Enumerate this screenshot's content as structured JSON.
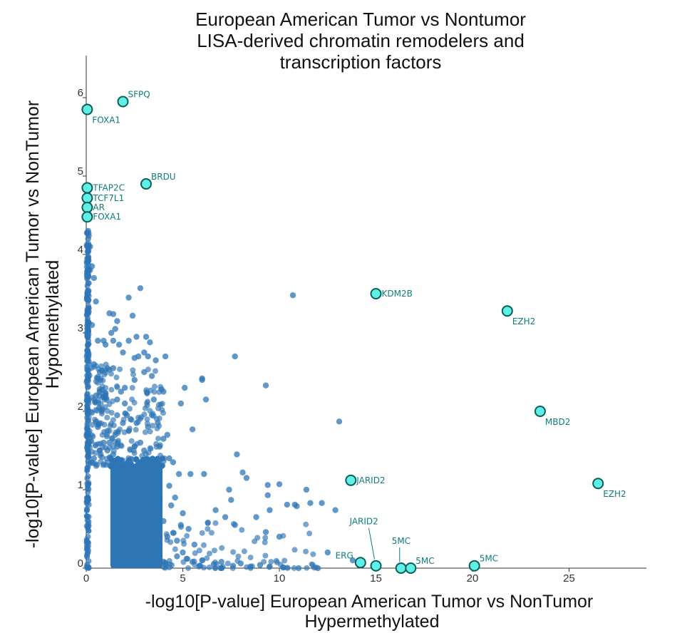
{
  "chart_data": {
    "type": "scatter",
    "title_lines": [
      "European American Tumor vs Nontumor",
      "LISA-derived chromatin remodelers and",
      "transcription factors"
    ],
    "xlabel_lines": [
      "-log10[P-value] European American Tumor vs NonTumor",
      "Hypermethylated"
    ],
    "ylabel_lines": [
      "-log10[P-value] European  American Tumor vs NonTumor",
      "Hypomethylated"
    ],
    "xlim": [
      0,
      29
    ],
    "ylim": [
      0,
      6.6
    ],
    "xticks": [
      0,
      5,
      10,
      15,
      20,
      25
    ],
    "yticks": [
      0,
      1,
      2,
      3,
      4,
      5,
      6
    ],
    "grid": false,
    "colors": {
      "points": "#2e75b6",
      "highlight_fill": "#5ef0e6",
      "highlight_edge": "#0b5e58",
      "annotation": "#0e7c7b",
      "axis": "#333333"
    },
    "points": [
      [
        6.0,
        2.42
      ],
      [
        6.0,
        2.4
      ],
      [
        6.2,
        2.15
      ],
      [
        7.7,
        2.7
      ],
      [
        9.3,
        2.33
      ],
      [
        10.7,
        3.48
      ],
      [
        13.1,
        1.87
      ],
      [
        5.5,
        1.77
      ],
      [
        4.9,
        2.1
      ],
      [
        5.1,
        2.3
      ],
      [
        7.8,
        1.45
      ],
      [
        8.1,
        1.22
      ],
      [
        8.3,
        1.15
      ],
      [
        6.1,
        1.2
      ],
      [
        5.4,
        1.2
      ],
      [
        7.4,
        1.0
      ],
      [
        7.5,
        0.87
      ],
      [
        9.4,
        1.06
      ],
      [
        10.0,
        1.07
      ],
      [
        11.4,
        1.0
      ],
      [
        11.6,
        0.83
      ],
      [
        12.2,
        0.83
      ],
      [
        10.4,
        0.81
      ],
      [
        10.9,
        0.79
      ],
      [
        10.8,
        0.81
      ],
      [
        9.4,
        0.93
      ],
      [
        9.5,
        0.74
      ],
      [
        12.9,
        0.74
      ],
      [
        6.7,
        0.74
      ],
      [
        7.2,
        0.65
      ],
      [
        8.8,
        0.65
      ],
      [
        6.3,
        0.58
      ],
      [
        7.7,
        0.55
      ],
      [
        9.3,
        0.46
      ],
      [
        10.0,
        0.4
      ],
      [
        12.5,
        0.2
      ],
      [
        13.8,
        0.1
      ],
      [
        11.0,
        0.0
      ],
      [
        12.0,
        0.0
      ],
      [
        0.2,
        3.8
      ],
      [
        0.3,
        3.85
      ],
      [
        0.1,
        4.3
      ],
      [
        0.1,
        4.2
      ],
      [
        0.2,
        4.1
      ],
      [
        0.4,
        3.7
      ],
      [
        0.5,
        3.4
      ],
      [
        0.3,
        3.1
      ],
      [
        0.6,
        2.9
      ],
      [
        0.4,
        2.6
      ],
      [
        0.7,
        2.5
      ],
      [
        0.5,
        2.2
      ],
      [
        0.8,
        2.0
      ],
      [
        0.6,
        1.8
      ],
      [
        0.9,
        1.6
      ],
      [
        0.7,
        1.5
      ],
      [
        0.4,
        1.4
      ],
      [
        0.3,
        1.35
      ],
      [
        1.3,
        3.0
      ],
      [
        1.4,
        2.9
      ],
      [
        1.6,
        3.15
      ],
      [
        1.5,
        3.05
      ],
      [
        1.7,
        2.85
      ],
      [
        1.2,
        3.25
      ],
      [
        1.4,
        3.24
      ],
      [
        2.2,
        3.45
      ],
      [
        2.8,
        3.57
      ],
      [
        2.4,
        3.22
      ],
      [
        1.0,
        2.85
      ],
      [
        0.9,
        2.9
      ],
      [
        1.1,
        2.55
      ],
      [
        1.2,
        2.53
      ],
      [
        1.4,
        2.55
      ],
      [
        1.0,
        2.2
      ],
      [
        1.8,
        2.25
      ],
      [
        2.0,
        2.3
      ],
      [
        2.5,
        2.4
      ],
      [
        2.6,
        2.95
      ],
      [
        2.2,
        2.9
      ],
      [
        3.0,
        2.75
      ],
      [
        3.2,
        2.7
      ],
      [
        3.6,
        2.65
      ],
      [
        3.0,
        2.5
      ],
      [
        3.4,
        2.45
      ],
      [
        3.9,
        2.28
      ],
      [
        4.0,
        2.25
      ],
      [
        3.5,
        2.15
      ],
      [
        4.1,
        2.7
      ],
      [
        3.1,
        2.95
      ],
      [
        3.3,
        2.88
      ],
      [
        2.7,
        2.7
      ],
      [
        2.5,
        2.68
      ],
      [
        1.9,
        2.75
      ],
      [
        2.0,
        2.1
      ],
      [
        1.6,
        2.15
      ],
      [
        2.1,
        1.95
      ],
      [
        2.3,
        1.9
      ],
      [
        2.6,
        1.85
      ],
      [
        3.2,
        1.8
      ],
      [
        3.4,
        1.95
      ],
      [
        3.7,
        1.85
      ],
      [
        4.2,
        1.7
      ],
      [
        4.0,
        1.65
      ],
      [
        3.8,
        1.55
      ],
      [
        4.3,
        1.4
      ],
      [
        4.5,
        1.35
      ],
      [
        4.8,
        1.2
      ],
      [
        3.9,
        1.3
      ],
      [
        1.6,
        1.95
      ],
      [
        1.9,
        1.85
      ],
      [
        1.5,
        1.7
      ],
      [
        2.2,
        1.75
      ],
      [
        2.8,
        1.6
      ],
      [
        3.0,
        1.5
      ],
      [
        1.1,
        1.75
      ],
      [
        1.2,
        1.6
      ],
      [
        1.4,
        1.45
      ],
      [
        1.1,
        1.5
      ],
      [
        1.6,
        1.55
      ],
      [
        2.5,
        1.55
      ],
      [
        4.6,
        0.9
      ],
      [
        4.4,
        0.8
      ],
      [
        5.0,
        0.7
      ],
      [
        4.9,
        0.55
      ],
      [
        5.3,
        0.5
      ],
      [
        4.5,
        0.45
      ],
      [
        4.2,
        0.4
      ],
      [
        5.6,
        0.3
      ],
      [
        5.0,
        0.2
      ],
      [
        6.0,
        0.1
      ],
      [
        5.5,
        0.08
      ],
      [
        7.0,
        0.08
      ],
      [
        8.0,
        0.06
      ],
      [
        9.0,
        0.04
      ],
      [
        6.6,
        0.05
      ],
      [
        7.6,
        0.03
      ],
      [
        8.5,
        0.02
      ],
      [
        9.5,
        0.02
      ],
      [
        10.2,
        0.01
      ],
      [
        4.7,
        0.15
      ],
      [
        4.0,
        0.6
      ],
      [
        3.8,
        0.9
      ],
      [
        4.3,
        1.05
      ],
      [
        4.7,
        0.35
      ],
      [
        5.2,
        0.12
      ],
      [
        5.9,
        0.03
      ]
    ],
    "highlighted": [
      {
        "label": "SFPQ",
        "x": 1.9,
        "y": 5.95,
        "label_pos": "above-right"
      },
      {
        "label": "FOXA1",
        "x": 0.05,
        "y": 5.85,
        "label_pos": "below-right"
      },
      {
        "label": "TFAP2C",
        "x": 0.05,
        "y": 4.85,
        "label_pos": "right"
      },
      {
        "label": "BRDU",
        "x": 3.1,
        "y": 4.9,
        "label_pos": "above-right"
      },
      {
        "label": "TCF7L1",
        "x": 0.05,
        "y": 4.72,
        "label_pos": "right"
      },
      {
        "label": "AR",
        "x": 0.05,
        "y": 4.6,
        "label_pos": "right"
      },
      {
        "label": "FOXA1",
        "x": 0.05,
        "y": 4.48,
        "label_pos": "right"
      },
      {
        "label": "KDM2B",
        "x": 15.0,
        "y": 3.5,
        "label_pos": "right"
      },
      {
        "label": "EZH2",
        "x": 21.8,
        "y": 3.28,
        "label_pos": "below-right"
      },
      {
        "label": "MBD2",
        "x": 23.5,
        "y": 2.0,
        "label_pos": "below-right"
      },
      {
        "label": "JARID2",
        "x": 13.7,
        "y": 1.12,
        "label_pos": "right"
      },
      {
        "label": "EZH2",
        "x": 26.5,
        "y": 1.08,
        "label_pos": "below-right"
      },
      {
        "label": "ERG",
        "x": 14.2,
        "y": 0.07,
        "label_pos": "above-left"
      },
      {
        "label": "JARID2",
        "x": 15.0,
        "y": 0.03,
        "label_pos": "callout-above"
      },
      {
        "label": "5MC",
        "x": 16.3,
        "y": 0.0,
        "label_pos": "callout-above"
      },
      {
        "label": "5MC",
        "x": 16.8,
        "y": 0.0,
        "label_pos": "above-right"
      },
      {
        "label": "5MC",
        "x": 20.1,
        "y": 0.03,
        "label_pos": "above-right"
      }
    ]
  }
}
